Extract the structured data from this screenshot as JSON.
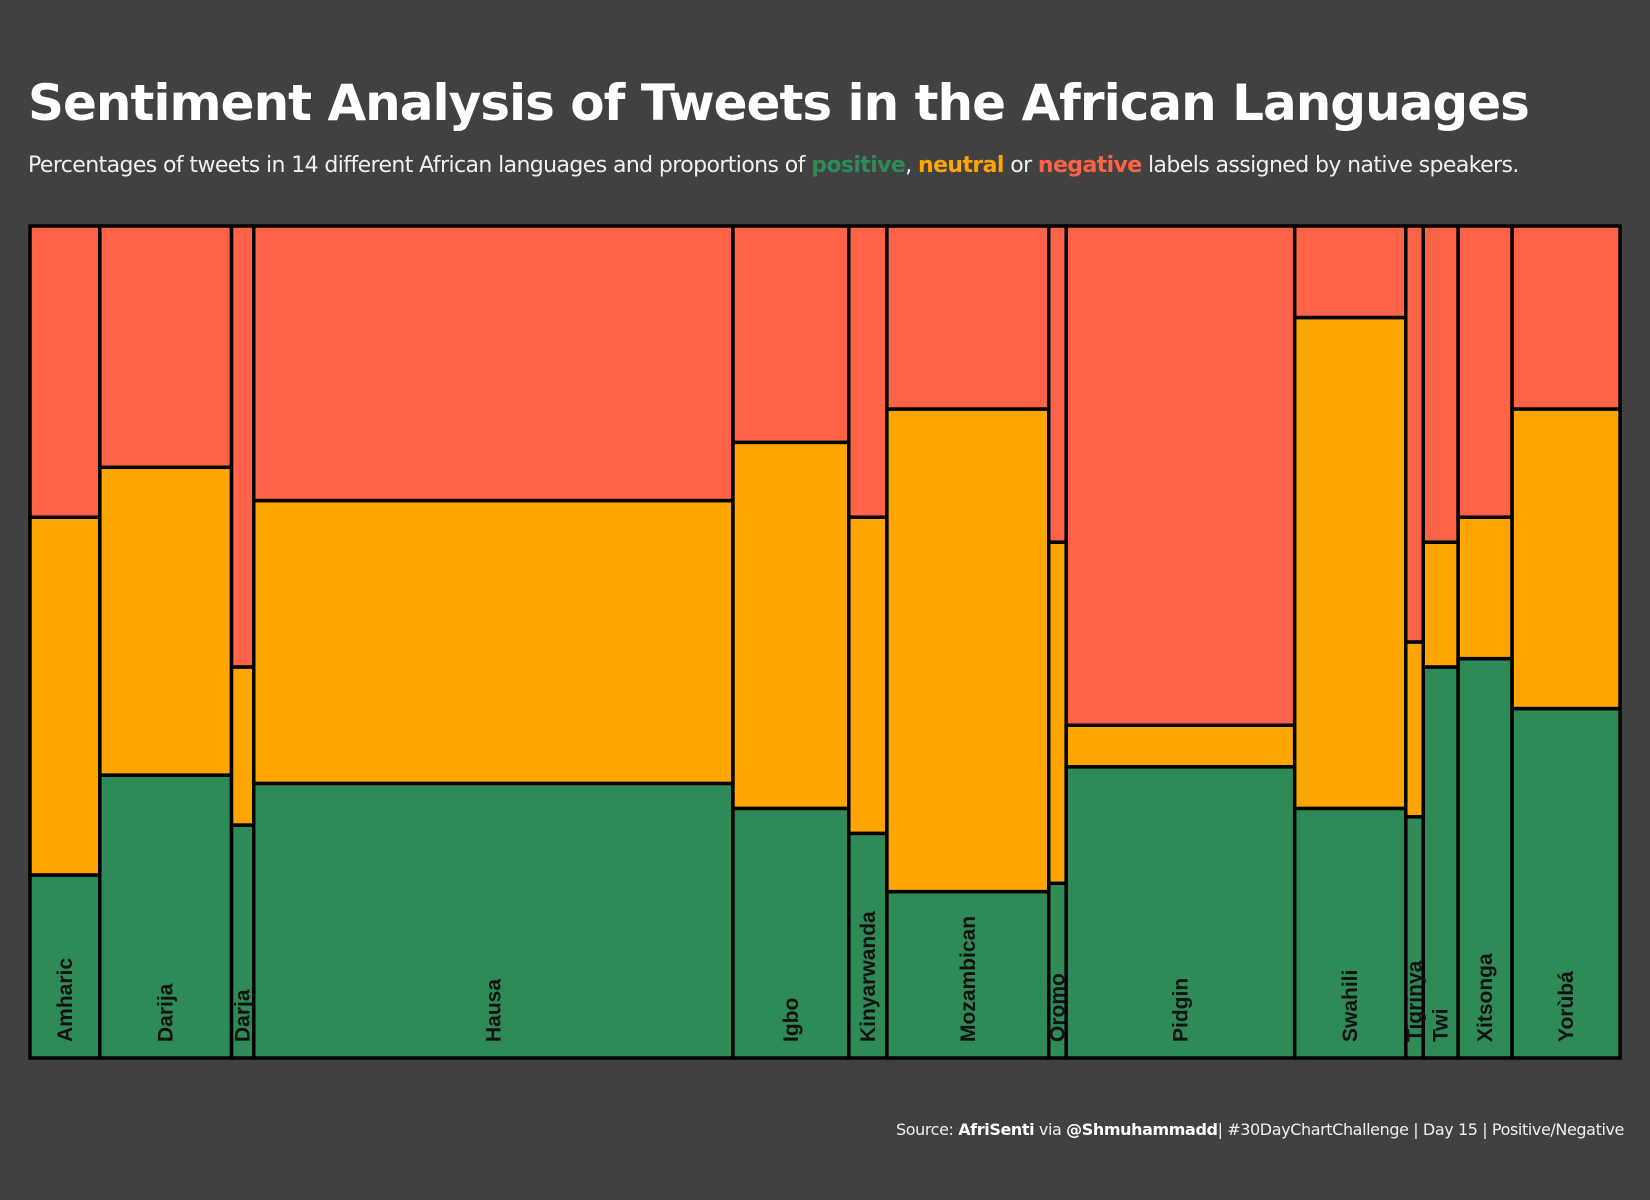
{
  "title": "Sentiment Analysis of Tweets in the African Languages",
  "subtitle": {
    "prefix": "Percentages of tweets in 14 different African languages and proportions of ",
    "positive": "positive",
    "sep1": ", ",
    "neutral": "neutral",
    "sep2": " or ",
    "negative": "negative",
    "suffix": " labels assigned by native speakers."
  },
  "caption": {
    "source_label": "Source: ",
    "source": "AfriSenti",
    "via": " via ",
    "handle": "@Shmuhammadd",
    "rest": "| #30DayChartChallenge | Day 15 | Positive/Negative"
  },
  "colors": {
    "positive": "#2e8b57",
    "neutral": "#ffa500",
    "negative": "#ff6347",
    "background": "#414141",
    "border": "#000000",
    "label": "#111111"
  },
  "chart_data": {
    "type": "mosaic",
    "categories": [
      "Amharic",
      "Darija",
      "Darja",
      "Hausa",
      "Igbo",
      "Kinyarwanda",
      "Mozambican",
      "Oromo",
      "Pidgin",
      "Swahili",
      "Tigrinya",
      "Twi",
      "Xitsonga",
      "Yorùbá"
    ],
    "width_share": [
      4.4,
      8.3,
      1.4,
      30.2,
      7.3,
      2.4,
      10.2,
      1.1,
      14.4,
      7.0,
      1.1,
      2.2,
      3.4,
      6.8
    ],
    "series": [
      {
        "name": "positive",
        "values": [
          22,
          34,
          28,
          33,
          30,
          27,
          20,
          21,
          35,
          30,
          29,
          47,
          48,
          42
        ]
      },
      {
        "name": "neutral",
        "values": [
          43,
          37,
          19,
          34,
          44,
          38,
          58,
          41,
          5,
          59,
          21,
          15,
          17,
          36
        ]
      },
      {
        "name": "negative",
        "values": [
          35,
          29,
          53,
          33,
          26,
          35,
          22,
          38,
          60,
          11,
          50,
          38,
          35,
          22
        ]
      }
    ],
    "ylim": [
      0,
      100
    ]
  }
}
